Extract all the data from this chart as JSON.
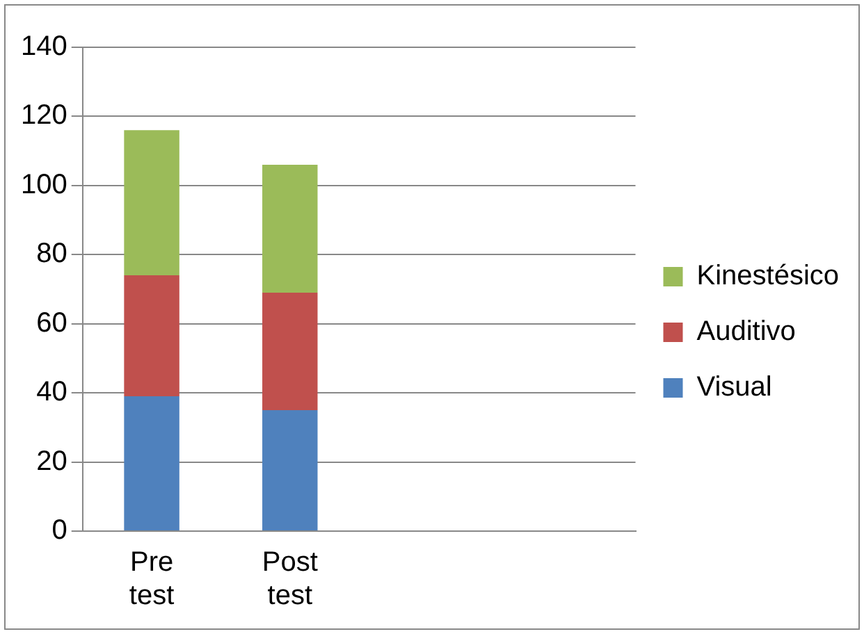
{
  "chart_data": {
    "type": "bar",
    "stacked": true,
    "categories": [
      "Pre test",
      "Post test",
      null,
      null
    ],
    "series": [
      {
        "name": "Visual",
        "color": "#4f81bd",
        "values": [
          39,
          35,
          null,
          null
        ]
      },
      {
        "name": "Auditivo",
        "color": "#c0504d",
        "values": [
          35,
          34,
          null,
          null
        ]
      },
      {
        "name": "Kinestésico",
        "color": "#9bbb59",
        "values": [
          42,
          37,
          null,
          null
        ]
      }
    ],
    "ylim": [
      0,
      140
    ],
    "yticks": [
      0,
      20,
      40,
      60,
      80,
      100,
      120,
      140
    ],
    "grid": "y",
    "legend": "right"
  }
}
